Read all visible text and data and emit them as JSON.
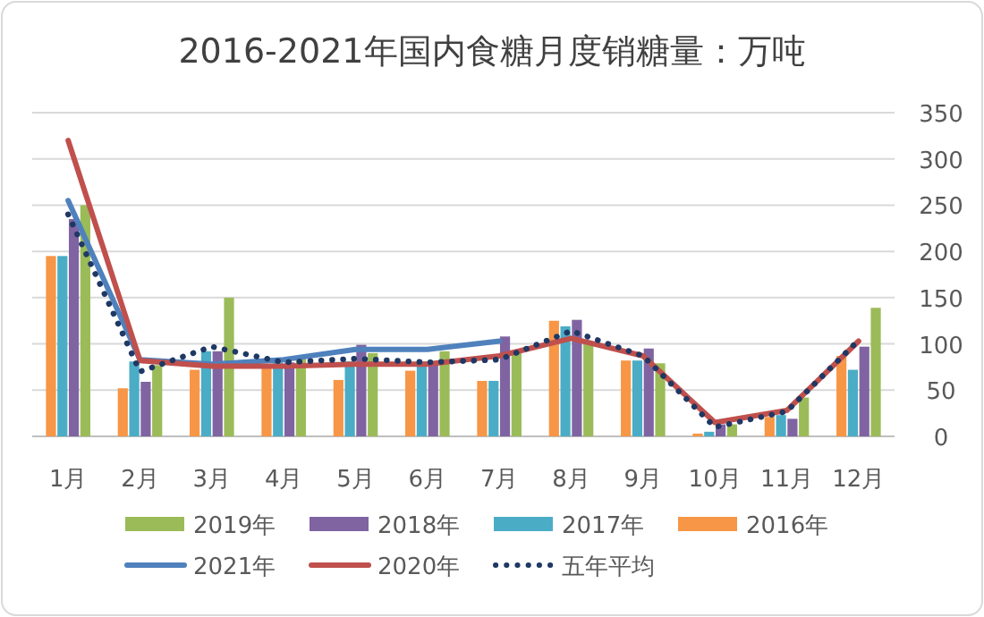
{
  "chart_data": {
    "type": "bar",
    "title": "2016-2021年国内食糖月度销糖量：万吨",
    "categories": [
      "1月",
      "2月",
      "3月",
      "4月",
      "5月",
      "6月",
      "7月",
      "8月",
      "9月",
      "10月",
      "11月",
      "12月"
    ],
    "series": [
      {
        "name": "2019年",
        "color": "#9bbb59",
        "values": [
          250,
          77,
          150,
          86,
          90,
          92,
          92,
          100,
          79,
          13,
          42,
          139
        ]
      },
      {
        "name": "2018年",
        "color": "#8064a2",
        "values": [
          235,
          59,
          92,
          80,
          99,
          81,
          108,
          126,
          95,
          13,
          19,
          97
        ]
      },
      {
        "name": "2017年",
        "color": "#4bacc6",
        "values": [
          195,
          81,
          92,
          80,
          81,
          81,
          60,
          119,
          82,
          5,
          23,
          72
        ]
      },
      {
        "name": "2016年",
        "color": "#f79646",
        "values": [
          195,
          52,
          72,
          76,
          61,
          71,
          60,
          125,
          82,
          3,
          21,
          87
        ]
      },
      {
        "name": "2021年",
        "type": "line",
        "color": "#4f81bd",
        "line_style": "solid",
        "values": [
          255,
          83,
          78,
          83,
          94,
          94,
          103,
          null,
          null,
          null,
          null,
          null
        ]
      },
      {
        "name": "2020年",
        "type": "line",
        "color": "#c0504d",
        "line_style": "solid",
        "values": [
          320,
          82,
          76,
          76,
          78,
          78,
          87,
          106,
          87,
          15,
          28,
          103
        ]
      },
      {
        "name": "五年平均",
        "type": "line",
        "color": "#1f3864",
        "line_style": "dotted",
        "values": [
          240,
          70,
          97,
          80,
          84,
          80,
          83,
          114,
          87,
          10,
          27,
          104
        ]
      }
    ],
    "ylim": [
      0,
      350
    ],
    "yticks": [
      0,
      50,
      100,
      150,
      200,
      250,
      300,
      350
    ],
    "grid": "y",
    "legend": "bottom",
    "marker": "none"
  }
}
